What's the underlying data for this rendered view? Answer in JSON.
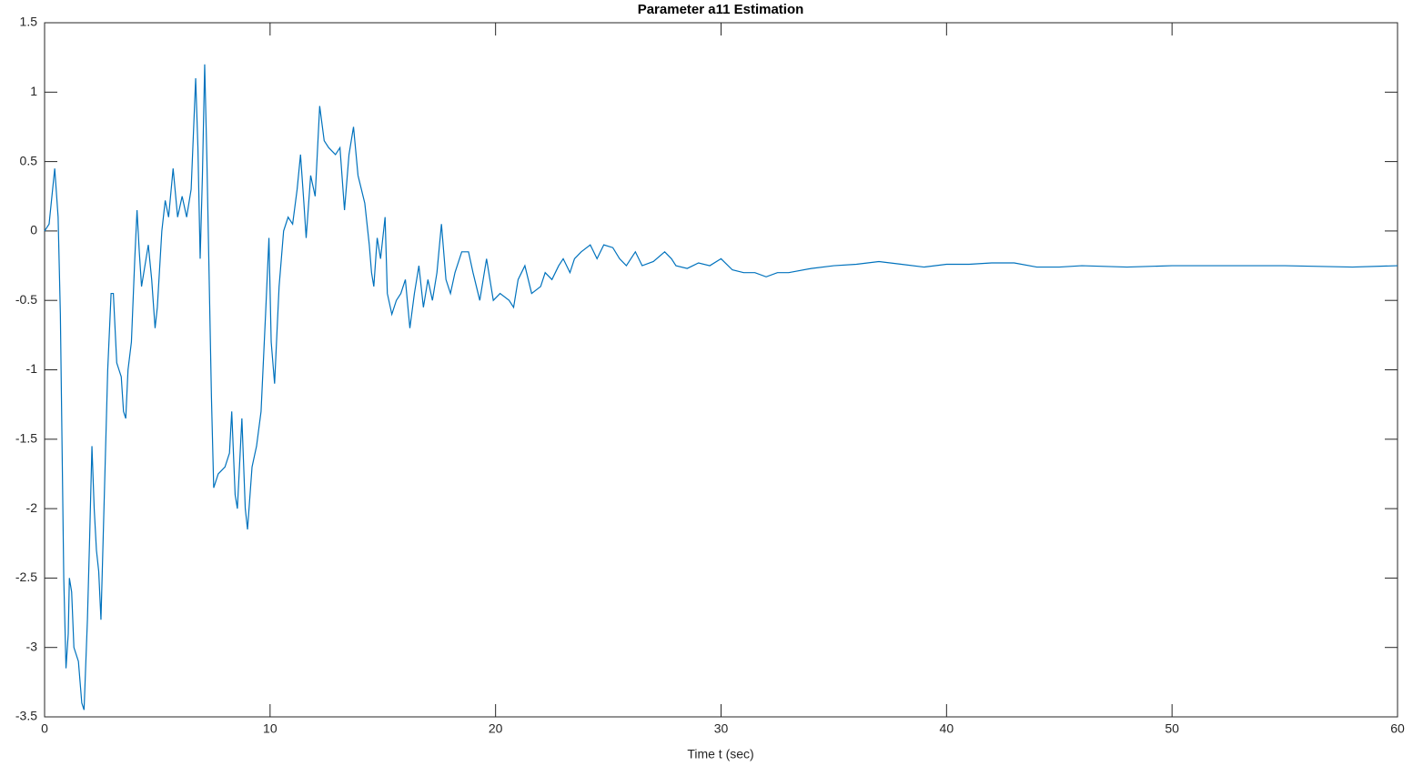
{
  "chart_data": {
    "type": "line",
    "title": "Parameter a11 Estimation",
    "x_label": "Time t (sec)",
    "x": [
      0,
      0.2,
      0.45,
      0.6,
      0.7,
      0.85,
      0.95,
      1.05,
      1.1,
      1.2,
      1.3,
      1.5,
      1.65,
      1.75,
      1.9,
      2.0,
      2.1,
      2.2,
      2.3,
      2.4,
      2.5,
      2.6,
      2.8,
      2.95,
      3.05,
      3.2,
      3.3,
      3.4,
      3.5,
      3.6,
      3.7,
      3.85,
      4.0,
      4.1,
      4.2,
      4.3,
      4.5,
      4.6,
      4.75,
      4.9,
      5.0,
      5.2,
      5.35,
      5.5,
      5.7,
      5.9,
      6.1,
      6.3,
      6.5,
      6.7,
      6.8,
      6.9,
      7.0,
      7.1,
      7.2,
      7.4,
      7.5,
      7.7,
      8.0,
      8.2,
      8.3,
      8.45,
      8.55,
      8.75,
      8.9,
      9.0,
      9.2,
      9.4,
      9.6,
      9.8,
      9.95,
      10.05,
      10.2,
      10.4,
      10.6,
      10.8,
      11.0,
      11.2,
      11.35,
      11.5,
      11.6,
      11.8,
      12.0,
      12.2,
      12.4,
      12.6,
      12.9,
      13.1,
      13.3,
      13.5,
      13.7,
      13.9,
      14.2,
      14.4,
      14.5,
      14.6,
      14.75,
      14.9,
      15.1,
      15.2,
      15.4,
      15.6,
      15.8,
      16.0,
      16.2,
      16.4,
      16.6,
      16.8,
      17.0,
      17.2,
      17.4,
      17.6,
      17.8,
      18.0,
      18.2,
      18.5,
      18.8,
      19.0,
      19.3,
      19.6,
      19.9,
      20.2,
      20.6,
      20.8,
      21.0,
      21.3,
      21.6,
      22.0,
      22.2,
      22.5,
      22.8,
      23.0,
      23.3,
      23.5,
      23.8,
      24.2,
      24.5,
      24.8,
      25.2,
      25.5,
      25.8,
      26.2,
      26.5,
      27.0,
      27.5,
      27.8,
      28.0,
      28.5,
      29.0,
      29.5,
      30.0,
      30.5,
      31.0,
      31.5,
      32.0,
      32.5,
      33,
      34,
      35,
      36,
      37,
      38,
      39,
      40,
      41,
      42,
      43,
      44,
      45,
      46,
      48,
      50,
      52,
      55,
      58,
      60
    ],
    "series": [
      {
        "color": "#0072BD",
        "values": [
          0,
          0.05,
          0.45,
          0.1,
          -0.6,
          -2.5,
          -3.15,
          -2.9,
          -2.5,
          -2.6,
          -3.0,
          -3.1,
          -3.4,
          -3.45,
          -2.8,
          -2.2,
          -1.55,
          -2.0,
          -2.3,
          -2.45,
          -2.8,
          -2.2,
          -1.0,
          -0.45,
          -0.45,
          -0.95,
          -1.0,
          -1.05,
          -1.3,
          -1.35,
          -1.0,
          -0.8,
          -0.2,
          0.15,
          -0.15,
          -0.4,
          -0.2,
          -0.1,
          -0.35,
          -0.7,
          -0.55,
          0.0,
          0.22,
          0.1,
          0.45,
          0.1,
          0.25,
          0.1,
          0.3,
          1.1,
          0.6,
          -0.2,
          0.4,
          1.2,
          0.5,
          -1.2,
          -1.85,
          -1.75,
          -1.7,
          -1.6,
          -1.3,
          -1.9,
          -2.0,
          -1.35,
          -2.0,
          -2.15,
          -1.7,
          -1.55,
          -1.3,
          -0.6,
          -0.05,
          -0.8,
          -1.1,
          -0.4,
          0.0,
          0.1,
          0.05,
          0.3,
          0.55,
          0.2,
          -0.05,
          0.4,
          0.25,
          0.9,
          0.65,
          0.6,
          0.55,
          0.6,
          0.15,
          0.55,
          0.75,
          0.4,
          0.2,
          -0.1,
          -0.3,
          -0.4,
          -0.05,
          -0.2,
          0.1,
          -0.45,
          -0.6,
          -0.5,
          -0.45,
          -0.35,
          -0.7,
          -0.45,
          -0.25,
          -0.55,
          -0.35,
          -0.5,
          -0.3,
          0.05,
          -0.35,
          -0.45,
          -0.3,
          -0.15,
          -0.15,
          -0.3,
          -0.5,
          -0.2,
          -0.5,
          -0.45,
          -0.5,
          -0.55,
          -0.35,
          -0.25,
          -0.45,
          -0.4,
          -0.3,
          -0.35,
          -0.25,
          -0.2,
          -0.3,
          -0.2,
          -0.15,
          -0.1,
          -0.2,
          -0.1,
          -0.12,
          -0.2,
          -0.25,
          -0.15,
          -0.25,
          -0.22,
          -0.15,
          -0.2,
          -0.25,
          -0.27,
          -0.23,
          -0.25,
          -0.2,
          -0.28,
          -0.3,
          -0.3,
          -0.33,
          -0.3,
          -0.3,
          -0.27,
          -0.25,
          -0.24,
          -0.22,
          -0.24,
          -0.26,
          -0.24,
          -0.24,
          -0.23,
          -0.23,
          -0.26,
          -0.26,
          -0.25,
          -0.26,
          -0.25,
          -0.25,
          -0.25,
          -0.26,
          -0.25
        ]
      }
    ],
    "xlim": [
      0,
      60
    ],
    "xticks": [
      0,
      10,
      20,
      30,
      40,
      50,
      60
    ],
    "ylim": [
      -3.5,
      1.5
    ],
    "yticks": [
      -3.5,
      -3,
      -2.5,
      -2,
      -1.5,
      -1,
      -0.5,
      0,
      0.5,
      1,
      1.5
    ]
  }
}
